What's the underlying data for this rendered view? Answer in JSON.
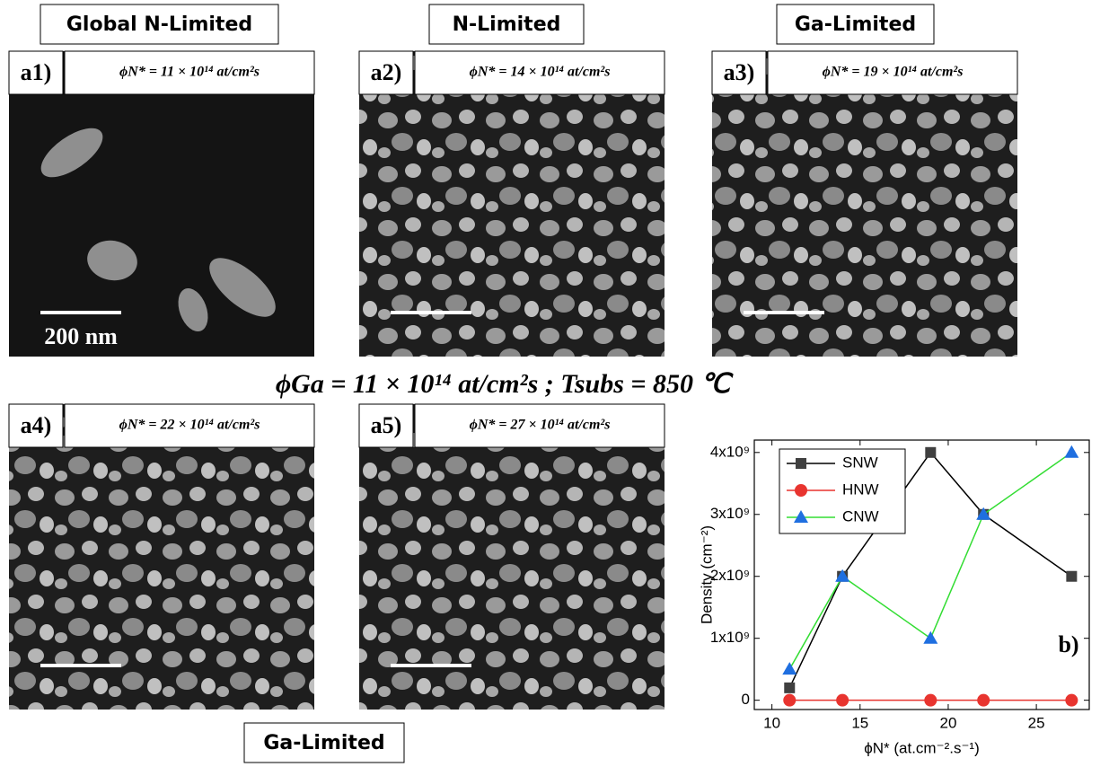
{
  "headers": [
    "Global N-Limited",
    "N-Limited",
    "Ga-Limited"
  ],
  "panels": [
    {
      "label": "a1)",
      "flux": "ϕN* = 11 × 10¹⁴ at/cm²s",
      "scale_bar": "200 nm"
    },
    {
      "label": "a2)",
      "flux": "ϕN* = 14 × 10¹⁴ at/cm²s"
    },
    {
      "label": "a3)",
      "flux": "ϕN* = 19 × 10¹⁴ at/cm²s"
    },
    {
      "label": "a4)",
      "flux": "ϕN* = 22 × 10¹⁴ at/cm²s"
    },
    {
      "label": "a5)",
      "flux": "ϕN* = 27 × 10¹⁴ at/cm²s"
    }
  ],
  "conditions": "ϕGa = 11 × 10¹⁴ at/cm²s ; Tsubs = 850 ℃",
  "footer_label": "Ga-Limited",
  "chart_data": {
    "type": "line",
    "x_label": "ϕN* (at.cm⁻².s⁻¹)",
    "y_label": "Density (cm⁻²)",
    "annotation": "b)",
    "x": [
      11,
      14,
      19,
      22,
      27
    ],
    "series": [
      {
        "name": "SNW",
        "color": "#404040",
        "line_color": "#000000",
        "marker": "square",
        "values": [
          200000000,
          2000000000,
          4000000000,
          3000000000,
          2000000000
        ]
      },
      {
        "name": "HNW",
        "color": "#e8342f",
        "line_color": "#e8342f",
        "marker": "circle",
        "values": [
          0,
          0,
          0,
          0,
          0
        ]
      },
      {
        "name": "CNW",
        "color": "#1f6fe0",
        "line_color": "#33dd33",
        "marker": "triangle",
        "values": [
          500000000,
          2000000000,
          1000000000,
          3000000000,
          4000000000
        ]
      }
    ],
    "xlim": [
      9,
      28
    ],
    "xticks": [
      10,
      15,
      20,
      25
    ],
    "ylim": [
      -150000000,
      4200000000
    ],
    "yticks": [
      0,
      {
        "value": 1000000000,
        "label": "1x10⁹"
      },
      {
        "value": 2000000000,
        "label": "2x10⁹"
      },
      {
        "value": 3000000000,
        "label": "3x10⁹"
      },
      {
        "value": 4000000000,
        "label": "4x10⁹"
      }
    ],
    "legend": "upper left"
  }
}
